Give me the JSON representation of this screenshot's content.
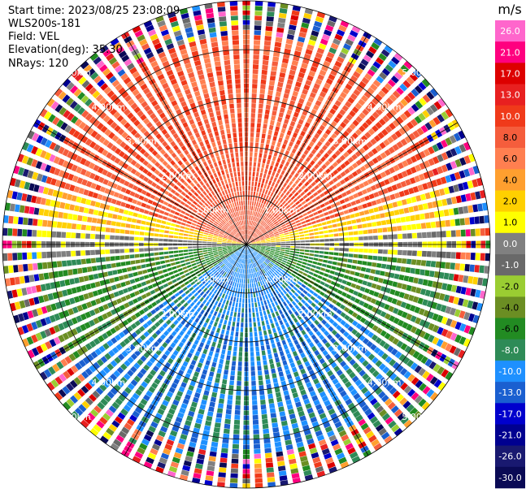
{
  "info": {
    "start_time": "Start time: 2023/08/25 23:08:09",
    "device": "WLS200s-181",
    "field": "Field: VEL",
    "elevation": "Elevation(deg): 35.30",
    "nrays": "NRays: 120"
  },
  "chart_data": {
    "type": "heatmap",
    "projection": "polar PPI",
    "field": "VEL",
    "range_rings_km": [
      "1.00km",
      "2.00km",
      "3.00km",
      "4.00km",
      "5.00km"
    ],
    "max_range_km": 5.0,
    "nrays": 120,
    "colorbar": {
      "unit": "m/s",
      "ticks": [
        "26.0",
        "21.0",
        "17.0",
        "13.0",
        "10.0",
        "8.0",
        "6.0",
        "4.0",
        "2.0",
        "1.0",
        "0.0",
        "-1.0",
        "-2.0",
        "-4.0",
        "-6.0",
        "-8.0",
        "-10.0",
        "-13.0",
        "-17.0",
        "-21.0",
        "-26.0",
        "-30.0"
      ],
      "colors": [
        "#ff66cc",
        "#ff007f",
        "#dd0000",
        "#e82020",
        "#f03a1a",
        "#f55d3c",
        "#ff7f50",
        "#ff9f2f",
        "#ffd000",
        "#ffff00",
        "#808080",
        "#696969",
        "#9acd32",
        "#6b8e23",
        "#228b22",
        "#2e8b57",
        "#1e90ff",
        "#1a5fd0",
        "#0000cd",
        "#000090",
        "#191970",
        "#0a0a55"
      ]
    },
    "velocity_pattern": {
      "north_sector": "8.0",
      "near_horizontal": "2.0",
      "horizon_band": "0.0",
      "south_sector": "-10.0",
      "southeast_southwest": "-6.0",
      "outer_ring_noise_km": 4.2
    }
  }
}
